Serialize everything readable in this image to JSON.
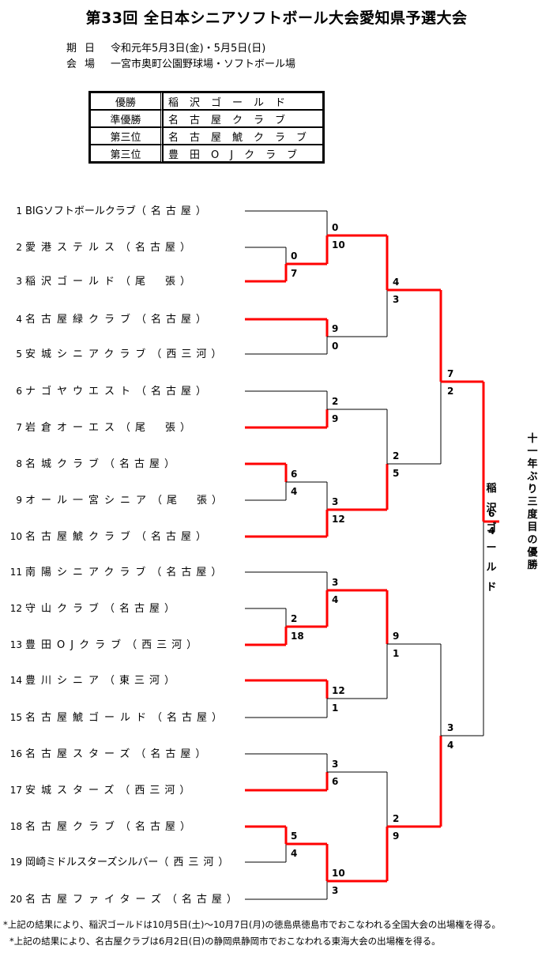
{
  "title": "第33回 全日本シニアソフトボール大会愛知県予選大会",
  "info": [
    {
      "key": "期日",
      "value": "令和元年5月3日(金)・5月5日(日)"
    },
    {
      "key": "会場",
      "value": "一宮市奥町公園野球場・ソフトボール場"
    }
  ],
  "results": [
    {
      "place": "優勝",
      "team": "稲沢ゴールド"
    },
    {
      "place": "準優勝",
      "team": "名古屋クラブ"
    },
    {
      "place": "第三位",
      "team": "名古屋鯱クラブ"
    },
    {
      "place": "第三位",
      "team": "豊田OJクラブ"
    }
  ],
  "teams": [
    {
      "num": "1",
      "name": "BIGソフトボールクラブ",
      "region": "（名古屋）"
    },
    {
      "num": "2",
      "name": "愛港ステルス",
      "region": "（名古屋）"
    },
    {
      "num": "3",
      "name": "稲沢ゴールド",
      "region": "（尾　張）"
    },
    {
      "num": "4",
      "name": "名古屋緑クラブ",
      "region": "（名古屋）"
    },
    {
      "num": "5",
      "name": "安城シニアクラブ",
      "region": "（西三河）"
    },
    {
      "num": "6",
      "name": "ナゴヤウエスト",
      "region": "（名古屋）"
    },
    {
      "num": "7",
      "name": "岩倉オーエス",
      "region": "（尾　張）"
    },
    {
      "num": "8",
      "name": "名城クラブ",
      "region": "（名古屋）"
    },
    {
      "num": "9",
      "name": "オール一宮シニア",
      "region": "（尾　張）"
    },
    {
      "num": "10",
      "name": "名古屋鯱クラブ",
      "region": "（名古屋）"
    },
    {
      "num": "11",
      "name": "南陽シニアクラブ",
      "region": "（名古屋）"
    },
    {
      "num": "12",
      "name": "守山クラブ",
      "region": "（名古屋）"
    },
    {
      "num": "13",
      "name": "豊田OJクラブ",
      "region": "（西三河）"
    },
    {
      "num": "14",
      "name": "豊川シニア",
      "region": "（東三河）"
    },
    {
      "num": "15",
      "name": "名古屋鯱ゴールド",
      "region": "（名古屋）"
    },
    {
      "num": "16",
      "name": "名古屋スターズ",
      "region": "（名古屋）"
    },
    {
      "num": "17",
      "name": "安城スターズ",
      "region": "（西三河）"
    },
    {
      "num": "18",
      "name": "名古屋クラブ",
      "region": "（名古屋）"
    },
    {
      "num": "19",
      "name": "岡崎ミドルスターズシルバー",
      "region": "（西三河）"
    },
    {
      "num": "20",
      "name": "名古屋ファイターズ",
      "region": "（名古屋）"
    }
  ],
  "games": [
    {
      "id": "r1a",
      "top": "0",
      "bottom": "7"
    },
    {
      "id": "r1b",
      "top": "6",
      "bottom": "4"
    },
    {
      "id": "r1c",
      "top": "2",
      "bottom": "18"
    },
    {
      "id": "r1d",
      "top": "5",
      "bottom": "4"
    },
    {
      "id": "r2a",
      "top": "0",
      "bottom": "10"
    },
    {
      "id": "r2b",
      "top": "9",
      "bottom": "0"
    },
    {
      "id": "r2c",
      "top": "2",
      "bottom": "9"
    },
    {
      "id": "r2d",
      "top": "3",
      "bottom": "12"
    },
    {
      "id": "r2e",
      "top": "3",
      "bottom": "4"
    },
    {
      "id": "r2f",
      "top": "12",
      "bottom": "1"
    },
    {
      "id": "r2g",
      "top": "3",
      "bottom": "6"
    },
    {
      "id": "r2h",
      "top": "10",
      "bottom": "3"
    },
    {
      "id": "qf1",
      "top": "4",
      "bottom": "3"
    },
    {
      "id": "qf2",
      "top": "2",
      "bottom": "5"
    },
    {
      "id": "qf3",
      "top": "9",
      "bottom": "1"
    },
    {
      "id": "qf4",
      "top": "2",
      "bottom": "9"
    },
    {
      "id": "sf1",
      "top": "7",
      "bottom": "2"
    },
    {
      "id": "sf2",
      "top": "3",
      "bottom": "4"
    },
    {
      "id": "final",
      "top": "6",
      "bottom": "4"
    }
  ],
  "champion_name": "稲沢ゴールド",
  "champion_banner": "十一年ぶり三度目の優勝",
  "notes": [
    "*上記の結果により、稲沢ゴールドは10月5日(土)〜10月7日(月)の徳島県徳島市でおこなわれる全国大会の出場権を得る。",
    "*上記の結果により、名古屋クラブは6月2日(日)の静岡県静岡市でおこなわれる東海大会の出場権を得る。"
  ],
  "colors": {
    "winner_line": "#ff0000",
    "loser_line": "#000000"
  }
}
